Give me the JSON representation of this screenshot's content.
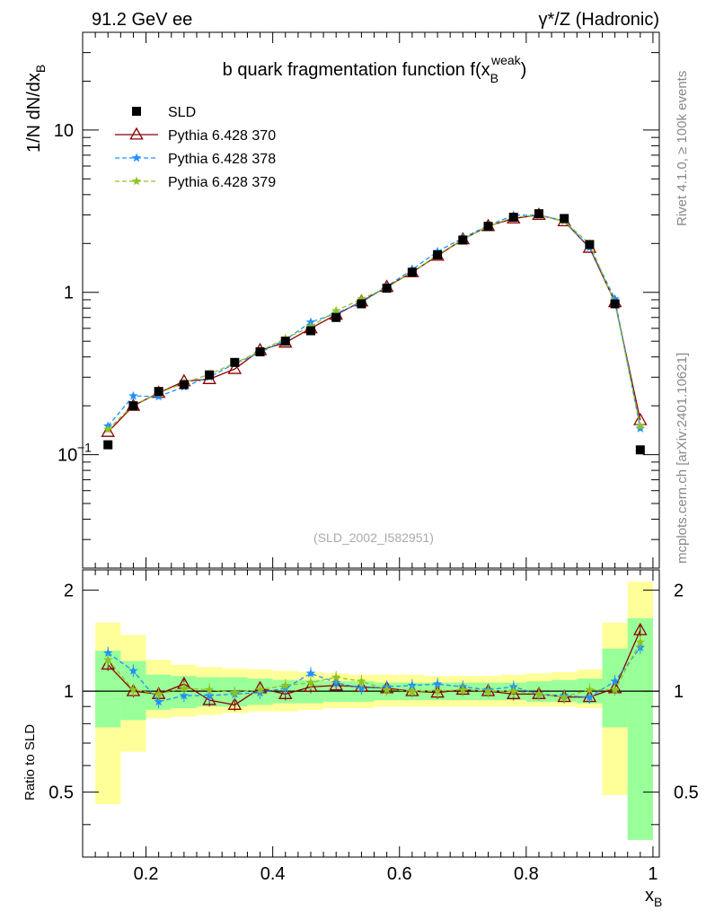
{
  "header": {
    "left": "91.2 GeV ee",
    "right": "γ*/Z (Hadronic)"
  },
  "side_labels": {
    "rivet": "Rivet 4.1.0, ≥ 100k events",
    "mcplots": "mcplots.cern.ch [arXiv:2401.10621]"
  },
  "chart_data": {
    "type": "line",
    "title": "b quark fragmentation function f(x_B^weak)",
    "analysis_tag": "(SLD_2002_I582951)",
    "xlabel": "x_B",
    "ylabel": "1/N  dN/dx_B",
    "ratio_ylabel": "Ratio to SLD",
    "xlim": [
      0.1,
      1.01
    ],
    "ylim": [
      0.02,
      40
    ],
    "yscale": "log",
    "ratio_ylim": [
      0.32,
      2.3
    ],
    "x_ticks": [
      "0.2",
      "0.4",
      "0.6",
      "0.8",
      "1"
    ],
    "y_ticks": [
      "10^-1",
      "1",
      "10"
    ],
    "ratio_ticks": [
      "0.5",
      "1",
      "2"
    ],
    "legend_position": "top-left",
    "x": [
      0.14,
      0.18,
      0.22,
      0.26,
      0.3,
      0.34,
      0.38,
      0.42,
      0.46,
      0.5,
      0.54,
      0.58,
      0.62,
      0.66,
      0.7,
      0.74,
      0.78,
      0.82,
      0.86,
      0.9,
      0.94,
      0.98
    ],
    "reference": {
      "name": "SLD",
      "color": "#000000",
      "values": [
        0.115,
        0.2,
        0.245,
        0.27,
        0.31,
        0.37,
        0.43,
        0.5,
        0.58,
        0.7,
        0.85,
        1.06,
        1.33,
        1.7,
        2.1,
        2.55,
        2.9,
        3.05,
        2.85,
        1.97,
        0.85,
        0.107
      ],
      "band_yellow": [
        [
          0.46,
          1.6
        ],
        [
          0.66,
          1.47
        ],
        [
          0.83,
          1.24
        ],
        [
          0.84,
          1.2
        ],
        [
          0.85,
          1.18
        ],
        [
          0.86,
          1.17
        ],
        [
          0.87,
          1.16
        ],
        [
          0.87,
          1.15
        ],
        [
          0.88,
          1.14
        ],
        [
          0.89,
          1.13
        ],
        [
          0.89,
          1.12
        ],
        [
          0.9,
          1.12
        ],
        [
          0.9,
          1.12
        ],
        [
          0.9,
          1.11
        ],
        [
          0.9,
          1.11
        ],
        [
          0.9,
          1.11
        ],
        [
          0.9,
          1.12
        ],
        [
          0.9,
          1.13
        ],
        [
          0.9,
          1.14
        ],
        [
          0.89,
          1.16
        ],
        [
          0.49,
          1.6
        ],
        [
          0.42,
          2.12
        ]
      ],
      "band_green": [
        [
          0.78,
          1.32
        ],
        [
          0.82,
          1.23
        ],
        [
          0.88,
          1.12
        ],
        [
          0.89,
          1.11
        ],
        [
          0.9,
          1.1
        ],
        [
          0.9,
          1.1
        ],
        [
          0.91,
          1.09
        ],
        [
          0.92,
          1.08
        ],
        [
          0.92,
          1.08
        ],
        [
          0.93,
          1.07
        ],
        [
          0.93,
          1.07
        ],
        [
          0.94,
          1.06
        ],
        [
          0.94,
          1.06
        ],
        [
          0.94,
          1.06
        ],
        [
          0.94,
          1.06
        ],
        [
          0.94,
          1.06
        ],
        [
          0.94,
          1.06
        ],
        [
          0.93,
          1.07
        ],
        [
          0.93,
          1.08
        ],
        [
          0.92,
          1.09
        ],
        [
          0.78,
          1.34
        ],
        [
          0.36,
          1.65
        ]
      ]
    },
    "series": [
      {
        "name": "Pythia 6.428 370",
        "color": "#8b0000",
        "style": "solid",
        "marker": "open-triangle",
        "values": [
          0.138,
          0.2,
          0.24,
          0.283,
          0.292,
          0.337,
          0.44,
          0.49,
          0.6,
          0.728,
          0.88,
          1.08,
          1.33,
          1.68,
          2.12,
          2.56,
          2.85,
          3.0,
          2.74,
          1.88,
          0.87,
          0.163
        ],
        "ratios": [
          1.2,
          1.0,
          0.98,
          1.05,
          0.94,
          0.91,
          1.02,
          0.98,
          1.03,
          1.04,
          1.03,
          1.02,
          1.0,
          0.99,
          1.01,
          1.0,
          0.98,
          0.98,
          0.96,
          0.96,
          1.02,
          1.52
        ]
      },
      {
        "name": "Pythia 6.428 378",
        "color": "#1e90ff",
        "style": "dashed",
        "marker": "star",
        "values": [
          0.15,
          0.23,
          0.228,
          0.262,
          0.301,
          0.363,
          0.426,
          0.51,
          0.655,
          0.742,
          0.867,
          1.087,
          1.383,
          1.785,
          2.163,
          2.576,
          2.987,
          2.989,
          2.764,
          1.89,
          0.91,
          0.145
        ],
        "ratios": [
          1.3,
          1.15,
          0.93,
          0.97,
          0.97,
          0.98,
          0.99,
          1.02,
          1.13,
          1.06,
          1.02,
          1.03,
          1.04,
          1.05,
          1.03,
          1.01,
          1.03,
          0.98,
          0.97,
          0.96,
          1.07,
          1.35
        ]
      },
      {
        "name": "Pythia 6.428 379",
        "color": "#8fc31f",
        "style": "dashed",
        "marker": "star",
        "values": [
          0.143,
          0.202,
          0.24,
          0.276,
          0.313,
          0.366,
          0.434,
          0.52,
          0.615,
          0.77,
          0.91,
          1.07,
          1.33,
          1.7,
          2.12,
          2.55,
          2.9,
          2.99,
          2.74,
          1.99,
          0.86,
          0.15
        ],
        "ratios": [
          1.24,
          1.01,
          0.98,
          1.02,
          1.01,
          0.99,
          1.01,
          1.04,
          1.06,
          1.1,
          1.07,
          1.01,
          1.0,
          1.0,
          1.01,
          1.0,
          1.0,
          0.98,
          0.96,
          1.01,
          1.01,
          1.4
        ]
      }
    ]
  }
}
